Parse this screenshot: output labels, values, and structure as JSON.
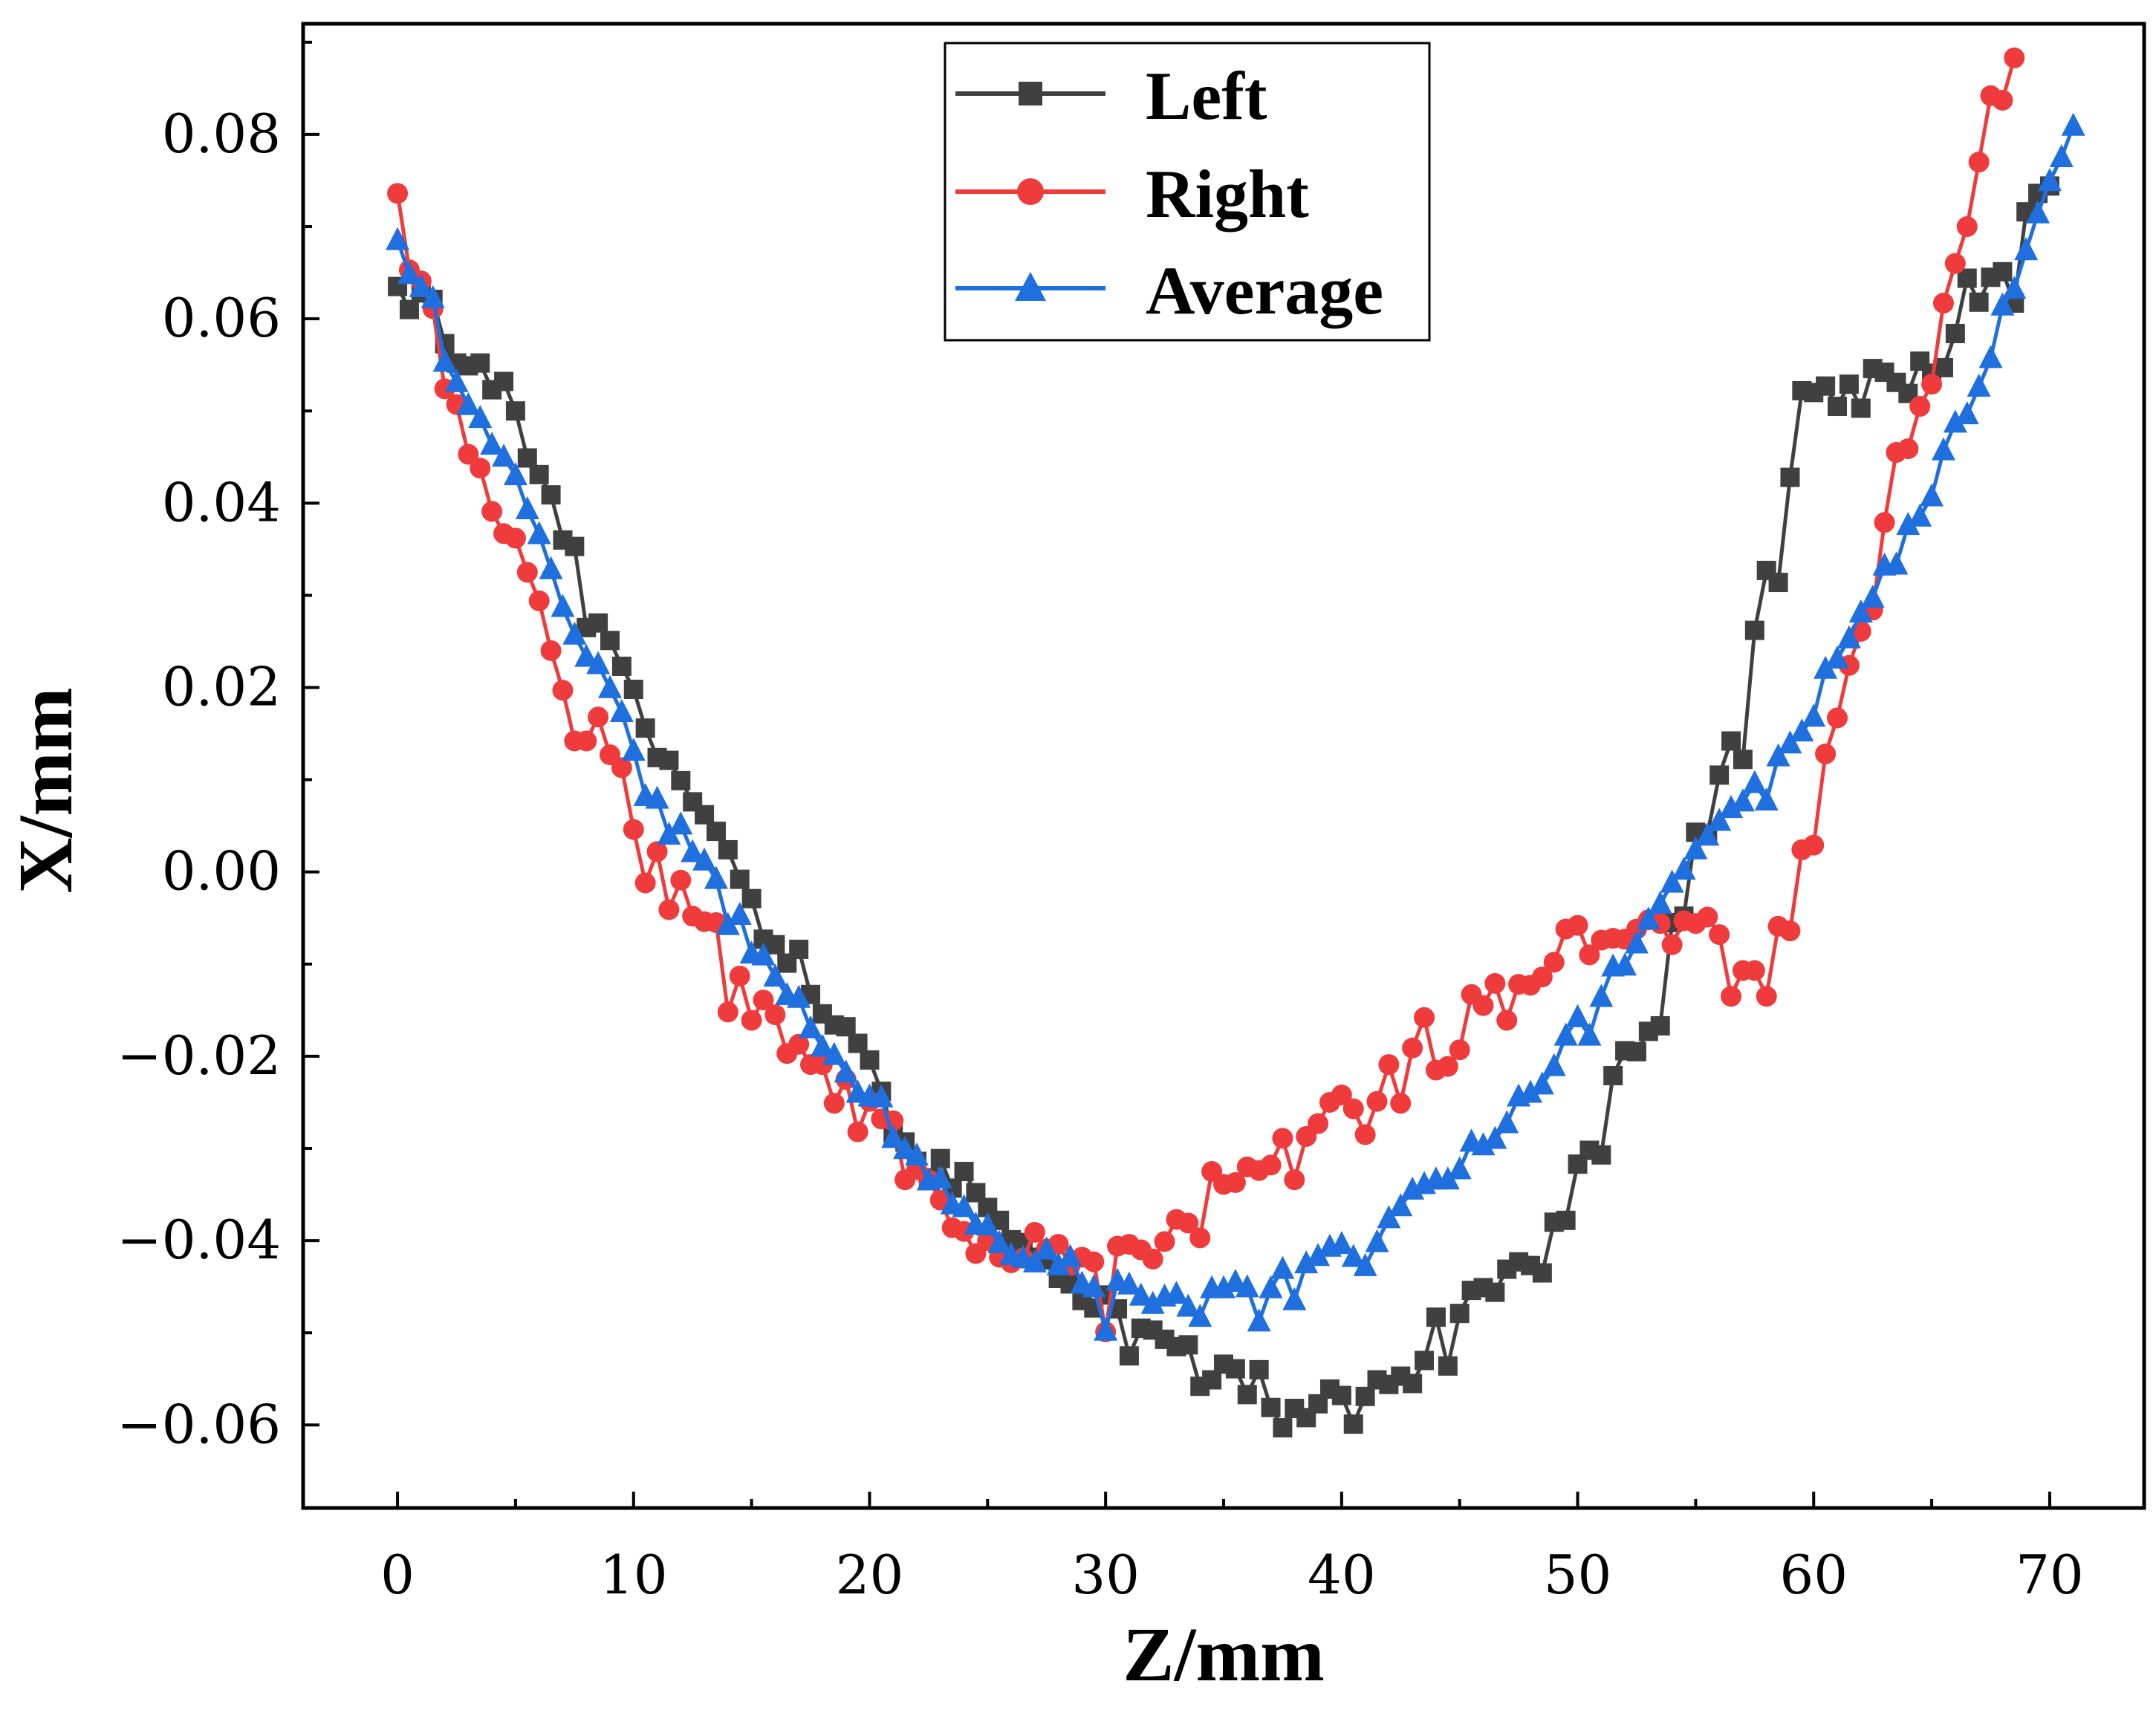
{
  "chart_data": {
    "type": "line",
    "title": "",
    "xlabel": "Z/mm",
    "ylabel": "X/mm",
    "xlim": [
      -4,
      74
    ],
    "ylim": [
      -0.069,
      0.092
    ],
    "xticks": [
      0,
      10,
      20,
      30,
      40,
      50,
      60,
      70
    ],
    "xtick_labels": [
      "0",
      "10",
      "20",
      "30",
      "40",
      "50",
      "60",
      "70"
    ],
    "yticks": [
      -0.06,
      -0.04,
      -0.02,
      0.0,
      0.02,
      0.04,
      0.06,
      0.08
    ],
    "ytick_labels": [
      "−0.06",
      "−0.04",
      "−0.02",
      "0.00",
      "0.02",
      "0.04",
      "0.06",
      "0.08"
    ],
    "grid": false,
    "legend_position": "top-center",
    "x_step": 0.5,
    "series": [
      {
        "name": "Left",
        "color": "#404040",
        "marker": "square",
        "values": [
          0.0635,
          0.061,
          0.0628,
          0.0621,
          0.0573,
          0.0552,
          0.0549,
          0.0552,
          0.0523,
          0.0532,
          0.05,
          0.0449,
          0.0431,
          0.0409,
          0.036,
          0.0353,
          0.0265,
          0.027,
          0.0251,
          0.0223,
          0.0198,
          0.0156,
          0.0124,
          0.0121,
          0.0099,
          0.0076,
          0.0062,
          0.0044,
          0.0024,
          -0.0008,
          -0.0029,
          -0.0073,
          -0.0079,
          -0.0099,
          -0.0084,
          -0.0133,
          -0.0154,
          -0.0166,
          -0.0168,
          -0.0186,
          -0.0204,
          -0.0238,
          -0.0283,
          -0.0293,
          -0.0314,
          -0.0332,
          -0.0311,
          -0.0343,
          -0.0325,
          -0.0348,
          -0.0364,
          -0.0378,
          -0.0399,
          -0.0402,
          -0.0418,
          -0.0421,
          -0.0441,
          -0.0447,
          -0.0465,
          -0.0473,
          -0.0459,
          -0.0474,
          -0.0525,
          -0.0495,
          -0.0497,
          -0.0507,
          -0.0515,
          -0.0513,
          -0.0558,
          -0.0551,
          -0.0534,
          -0.0539,
          -0.0567,
          -0.054,
          -0.0581,
          -0.0603,
          -0.0582,
          -0.0592,
          -0.0577,
          -0.0561,
          -0.0568,
          -0.0599,
          -0.0569,
          -0.0551,
          -0.0556,
          -0.0547,
          -0.0555,
          -0.053,
          -0.0483,
          -0.0536,
          -0.0479,
          -0.0454,
          -0.0451,
          -0.0456,
          -0.0431,
          -0.0423,
          -0.0427,
          -0.0435,
          -0.038,
          -0.0378,
          -0.0317,
          -0.0302,
          -0.0307,
          -0.0221,
          -0.0194,
          -0.0195,
          -0.0173,
          -0.0167,
          -0.0055,
          -0.0048,
          0.0043,
          0.0041,
          0.0105,
          0.0142,
          0.0122,
          0.0262,
          0.0327,
          0.0314,
          0.0428,
          0.0522,
          0.052,
          0.0527,
          0.0505,
          0.0529,
          0.0503,
          0.0546,
          0.0542,
          0.0531,
          0.0519,
          0.0554,
          0.0541,
          0.0547,
          0.0584,
          0.0644,
          0.0618,
          0.0645,
          0.0651,
          0.0617,
          0.0716,
          0.0736,
          0.0744
        ]
      },
      {
        "name": "Right",
        "color": "#ef3b3b",
        "marker": "circle",
        "values": [
          0.0736,
          0.0653,
          0.0641,
          0.0611,
          0.0524,
          0.0507,
          0.0453,
          0.0438,
          0.0391,
          0.0367,
          0.0362,
          0.0325,
          0.0294,
          0.024,
          0.0197,
          0.0142,
          0.0142,
          0.0168,
          0.0127,
          0.0113,
          0.0046,
          -0.0012,
          0.0022,
          -0.0041,
          -0.0009,
          -0.0048,
          -0.0054,
          -0.0055,
          -0.0152,
          -0.0113,
          -0.0161,
          -0.0139,
          -0.0155,
          -0.0197,
          -0.0187,
          -0.0209,
          -0.0209,
          -0.0251,
          -0.0225,
          -0.0282,
          -0.0249,
          -0.0268,
          -0.027,
          -0.0334,
          -0.0323,
          -0.0334,
          -0.0356,
          -0.0386,
          -0.039,
          -0.0414,
          -0.04,
          -0.0418,
          -0.0424,
          -0.0419,
          -0.0391,
          -0.0409,
          -0.0404,
          -0.0427,
          -0.0418,
          -0.0423,
          -0.0499,
          -0.0406,
          -0.0404,
          -0.041,
          -0.042,
          -0.0401,
          -0.0377,
          -0.0381,
          -0.0397,
          -0.0325,
          -0.0339,
          -0.0337,
          -0.032,
          -0.0324,
          -0.0318,
          -0.0289,
          -0.0334,
          -0.0287,
          -0.0273,
          -0.025,
          -0.0242,
          -0.0257,
          -0.0285,
          -0.0249,
          -0.0209,
          -0.0251,
          -0.0191,
          -0.0158,
          -0.0215,
          -0.0211,
          -0.0193,
          -0.0133,
          -0.0145,
          -0.0121,
          -0.0161,
          -0.0122,
          -0.0123,
          -0.0114,
          -0.0098,
          -0.0062,
          -0.0058,
          -0.009,
          -0.0074,
          -0.0072,
          -0.0073,
          -0.0062,
          -0.0052,
          -0.0056,
          -0.0079,
          -0.0053,
          -0.0056,
          -0.0049,
          -0.0068,
          -0.0135,
          -0.0107,
          -0.0107,
          -0.0135,
          -0.0059,
          -0.0064,
          0.0024,
          0.0029,
          0.0128,
          0.0167,
          0.0224,
          0.0261,
          0.0284,
          0.0379,
          0.0455,
          0.0459,
          0.0505,
          0.0529,
          0.0617,
          0.066,
          0.07,
          0.077,
          0.0842,
          0.0837,
          0.0883
        ]
      },
      {
        "name": "Average",
        "color": "#1f6fde",
        "marker": "triangle",
        "values": [
          0.0685,
          0.0648,
          0.0634,
          0.0622,
          0.0553,
          0.0531,
          0.0506,
          0.0492,
          0.0463,
          0.045,
          0.043,
          0.0393,
          0.0366,
          0.0328,
          0.0287,
          0.0257,
          0.0233,
          0.0225,
          0.0199,
          0.0173,
          0.0131,
          0.0082,
          0.0079,
          0.004,
          0.0051,
          0.0021,
          0.0012,
          -0.0008,
          -0.0058,
          -0.0047,
          -0.0089,
          -0.0091,
          -0.0114,
          -0.0134,
          -0.0137,
          -0.017,
          -0.019,
          -0.0199,
          -0.0218,
          -0.024,
          -0.0244,
          -0.0245,
          -0.0289,
          -0.0301,
          -0.0308,
          -0.0335,
          -0.0333,
          -0.0361,
          -0.0364,
          -0.0383,
          -0.0384,
          -0.0403,
          -0.0416,
          -0.0419,
          -0.0424,
          -0.041,
          -0.0427,
          -0.0418,
          -0.0447,
          -0.0451,
          -0.0498,
          -0.0444,
          -0.0448,
          -0.046,
          -0.0469,
          -0.0461,
          -0.0458,
          -0.0472,
          -0.0483,
          -0.0452,
          -0.0452,
          -0.0445,
          -0.0451,
          -0.0488,
          -0.0452,
          -0.0431,
          -0.0465,
          -0.0425,
          -0.0417,
          -0.0407,
          -0.0404,
          -0.0418,
          -0.0428,
          -0.0402,
          -0.0376,
          -0.0363,
          -0.0345,
          -0.0339,
          -0.0334,
          -0.0334,
          -0.0323,
          -0.0293,
          -0.0297,
          -0.029,
          -0.0273,
          -0.0244,
          -0.024,
          -0.0231,
          -0.0211,
          -0.0178,
          -0.0158,
          -0.0178,
          -0.0136,
          -0.0103,
          -0.0102,
          -0.0078,
          -0.0052,
          -0.0035,
          -0.0012,
          0.0002,
          0.0024,
          0.0039,
          0.0055,
          0.0069,
          0.0076,
          0.0096,
          0.0077,
          0.0125,
          0.0139,
          0.0152,
          0.0168,
          0.022,
          0.0231,
          0.0253,
          0.0281,
          0.0297,
          0.0332,
          0.0333,
          0.0376,
          0.0385,
          0.0407,
          0.0457,
          0.0487,
          0.0496,
          0.0526,
          0.0557,
          0.0614,
          0.0632,
          0.0674,
          0.0714,
          0.0749,
          0.0775,
          0.0809
        ]
      }
    ]
  }
}
